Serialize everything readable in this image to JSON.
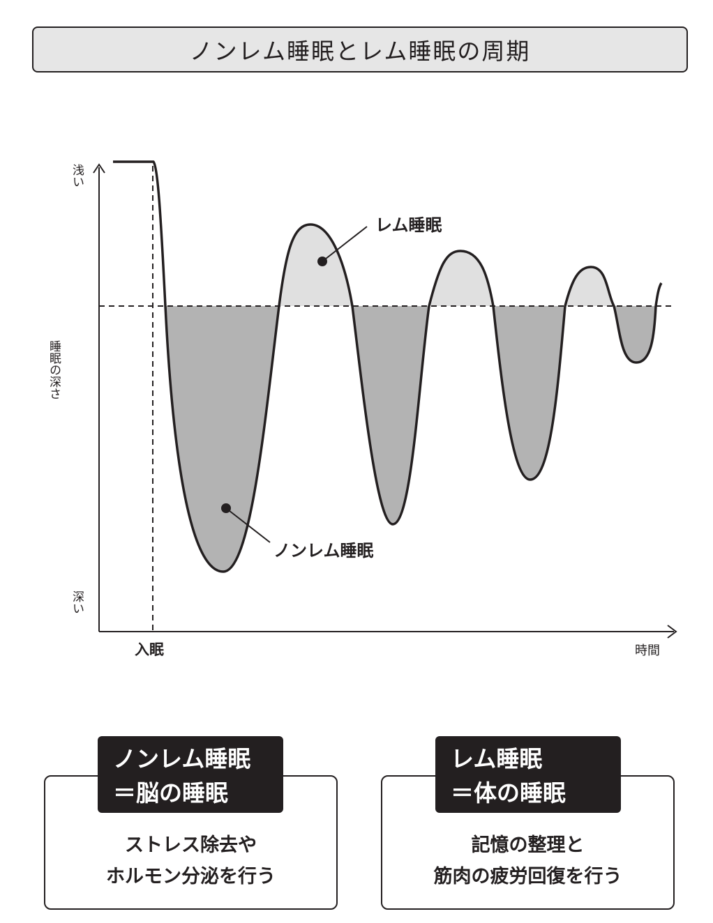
{
  "title": "ノンレム睡眠とレム睡眠の周期",
  "diagram": {
    "y_axis_top_label": "浅い",
    "y_axis_label": "睡眠の深さ",
    "y_axis_bottom_label": "深い",
    "x_axis_label": "時間",
    "sleep_onset_label": "入眠",
    "rem_label": "レム睡眠",
    "nonrem_label": "ノンレム睡眠",
    "colors": {
      "line": "#231f20",
      "nonrem_fill": "#b3b3b3",
      "rem_fill": "#e0e0e0"
    }
  },
  "boxes": {
    "nonrem": {
      "heading": [
        "ノンレム睡眠",
        "＝脳の睡眠"
      ],
      "body": [
        "ストレス除去や",
        "ホルモン分泌を行う"
      ]
    },
    "rem": {
      "heading": [
        "レム睡眠",
        "＝体の睡眠"
      ],
      "body": [
        "記憶の整理と",
        "筋肉の疲労回復を行う"
      ]
    }
  }
}
